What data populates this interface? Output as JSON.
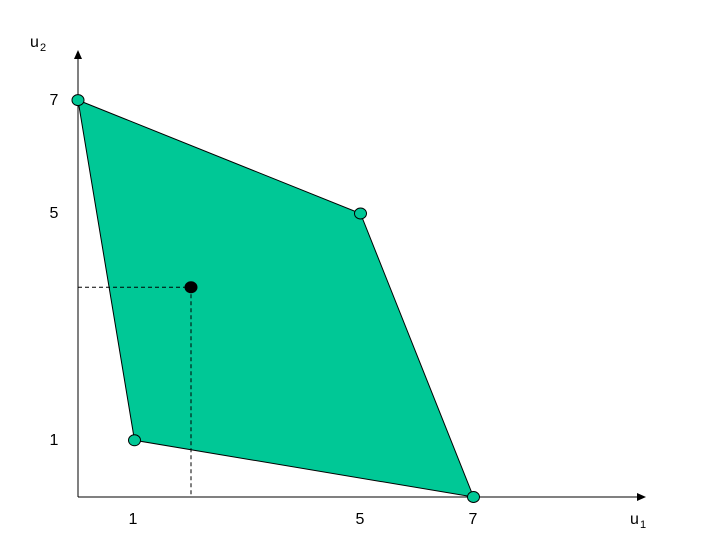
{
  "chart_data": {
    "type": "scatter",
    "x_axis": {
      "label_base": "u",
      "label_sub": "1",
      "ticks": [
        "1",
        "5",
        "7"
      ]
    },
    "y_axis": {
      "label_base": "u",
      "label_sub": "2",
      "ticks": [
        "1",
        "5",
        "7"
      ]
    },
    "region_vertices": [
      [
        0,
        7
      ],
      [
        5,
        5
      ],
      [
        7,
        0
      ],
      [
        1,
        1
      ]
    ],
    "interior_point": [
      2,
      3.7
    ],
    "colors": {
      "region_fill": "#00c896",
      "vertex_fill": "#00c896",
      "interior_point": "#000000",
      "lines": "#000000"
    }
  }
}
